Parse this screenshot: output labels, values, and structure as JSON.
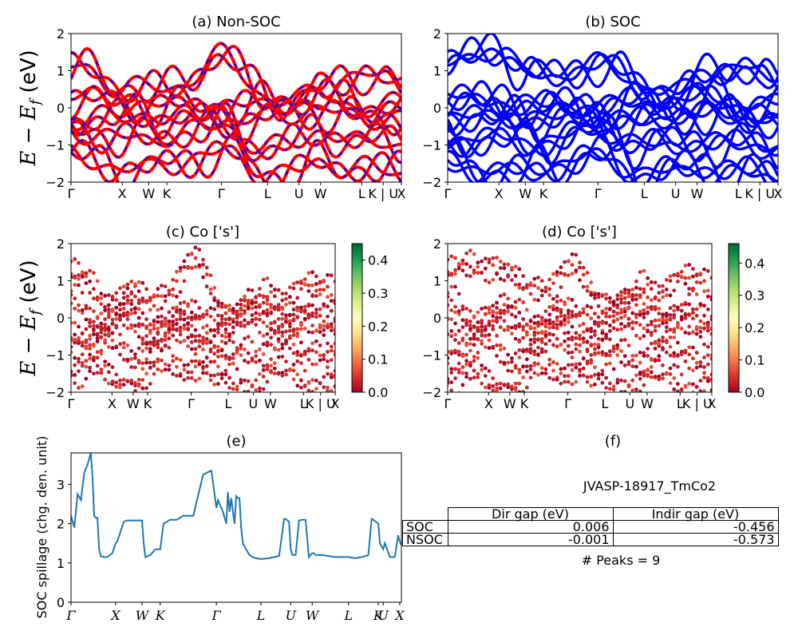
{
  "figure": {
    "ylabel_band": "E − E_f (eV)",
    "kpath_labels": [
      "Γ",
      "X",
      "W",
      "K",
      "Γ",
      "L",
      "U",
      "W",
      "L",
      "K | U",
      "X"
    ],
    "kpath_labels_spillage": [
      "Γ",
      "X",
      "W",
      "K",
      "Γ",
      "L",
      "U",
      "W",
      "L",
      "K",
      "U",
      "X"
    ]
  },
  "panels": {
    "a": {
      "title": "(a) Non-SOC"
    },
    "b": {
      "title": "(b) SOC"
    },
    "c": {
      "title": "(c)  Co ['s']"
    },
    "d": {
      "title": "(d) Co ['s']"
    },
    "e": {
      "title": "(e)",
      "ylabel": "SOC spillage (chg. den. unit)"
    },
    "f": {
      "title": "(f)",
      "material": "JVASP-18917_TmCo2",
      "peaks": "# Peaks = 9"
    }
  },
  "colorbars": {
    "c": {
      "ticks": [
        "0.0",
        "0.1",
        "0.2",
        "0.3",
        "0.4"
      ]
    },
    "d": {
      "ticks": [
        "0.0",
        "0.1",
        "0.2",
        "0.3",
        "0.4"
      ]
    }
  },
  "gap_table": {
    "headers": [
      "Dir gap (eV)",
      "Indir gap (eV)"
    ],
    "rows": [
      {
        "label": "SOC",
        "dir": "0.006",
        "indir": "-0.456"
      },
      {
        "label": "NSOC",
        "dir": "-0.001",
        "indir": "-0.573"
      }
    ]
  },
  "colors": {
    "nonsoc_primary": "#ff0000",
    "nonsoc_dash": "#0000ff",
    "soc": "#0000ff",
    "spillage": "#1f77b4",
    "cmap_low": "#a50026",
    "cmap_high": "#006837"
  },
  "chart_data": [
    {
      "type": "line",
      "panel": "a",
      "title": "(a) Non-SOC",
      "ylabel": "E − E_f (eV)",
      "ylim": [
        -2,
        2
      ],
      "yticks": [
        "−2",
        "−1",
        "0",
        "1",
        "2"
      ],
      "x_ticks": [
        0,
        0.155,
        0.235,
        0.29,
        0.455,
        0.595,
        0.69,
        0.755,
        0.88,
        0.945,
        1.0
      ],
      "x_tick_labels": [
        "Γ",
        "X",
        "W",
        "K",
        "Γ",
        "L",
        "U",
        "W",
        "L",
        "K | U",
        "X"
      ],
      "series": [
        {
          "x": [
            0,
            0.155,
            0.235,
            0.29,
            0.455,
            0.595,
            0.69,
            0.755,
            0.88,
            0.945,
            1.0
          ],
          "values": [
            1.1,
            0.6,
            0.55,
            0.45,
            1.4,
            0.3,
            0.2,
            0.5,
            1.0,
            0.7,
            0.5
          ]
        },
        {
          "x": [
            0,
            0.155,
            0.235,
            0.29,
            0.455,
            0.595,
            0.69,
            0.755,
            0.88,
            0.945,
            1.0
          ],
          "values": [
            0.35,
            0.05,
            0.1,
            0.05,
            0.0,
            0.1,
            0.2,
            0.3,
            0.0,
            0.1,
            0.05
          ]
        },
        {
          "x": [
            0,
            0.155,
            0.235,
            0.29,
            0.455,
            0.595,
            0.69,
            0.755,
            0.88,
            0.945,
            1.0
          ],
          "values": [
            -0.3,
            -0.25,
            -0.15,
            -0.25,
            -0.35,
            -0.3,
            -0.1,
            -0.05,
            -0.3,
            -0.2,
            -0.3
          ]
        },
        {
          "x": [
            0,
            0.155,
            0.235,
            0.29,
            0.455,
            0.595,
            0.69,
            0.755,
            0.88,
            0.945,
            1.0
          ],
          "values": [
            -0.6,
            -0.8,
            -0.9,
            -0.7,
            -0.5,
            -1.1,
            -0.9,
            -0.6,
            -1.0,
            -0.8,
            -1.0
          ]
        },
        {
          "x": [
            0,
            0.155,
            0.235,
            0.29,
            0.455,
            0.595,
            0.69,
            0.755,
            0.88,
            0.945,
            1.0
          ],
          "values": [
            -1.3,
            -1.6,
            -1.7,
            -1.5,
            -1.2,
            -1.8,
            -1.7,
            -1.5,
            -1.6,
            -1.7,
            -1.8
          ]
        }
      ]
    },
    {
      "type": "line",
      "panel": "b",
      "title": "(b) SOC",
      "ylim": [
        -2,
        2
      ],
      "yticks": [
        "−2",
        "−1",
        "0",
        "1",
        "2"
      ],
      "x_ticks": [
        0,
        0.155,
        0.235,
        0.29,
        0.455,
        0.595,
        0.69,
        0.755,
        0.88,
        0.945,
        1.0
      ],
      "x_tick_labels": [
        "Γ",
        "X",
        "W",
        "K",
        "Γ",
        "L",
        "U",
        "W",
        "L",
        "K | U",
        "X"
      ],
      "series": [
        {
          "x": [
            0,
            0.155,
            0.235,
            0.29,
            0.455,
            0.595,
            0.69,
            0.755,
            0.88,
            0.945,
            1.0
          ],
          "values": [
            1.15,
            1.6,
            1.0,
            0.8,
            1.2,
            0.6,
            0.4,
            0.7,
            1.2,
            0.9,
            0.6
          ]
        },
        {
          "x": [
            0,
            0.155,
            0.235,
            0.29,
            0.455,
            0.595,
            0.69,
            0.755,
            0.88,
            0.945,
            1.0
          ],
          "values": [
            0.3,
            0.1,
            0.15,
            0.05,
            0.05,
            0.15,
            0.2,
            0.3,
            0.05,
            0.1,
            0.1
          ]
        },
        {
          "x": [
            0,
            0.155,
            0.235,
            0.29,
            0.455,
            0.595,
            0.69,
            0.755,
            0.88,
            0.945,
            1.0
          ],
          "values": [
            -0.2,
            -0.3,
            -0.2,
            -0.3,
            -0.25,
            -0.4,
            -0.2,
            -0.1,
            -0.3,
            -0.25,
            -0.3
          ]
        },
        {
          "x": [
            0,
            0.155,
            0.235,
            0.29,
            0.455,
            0.595,
            0.69,
            0.755,
            0.88,
            0.945,
            1.0
          ],
          "values": [
            -0.9,
            -0.8,
            -1.0,
            -0.9,
            -0.6,
            -1.0,
            -1.0,
            -0.9,
            -1.0,
            -1.0,
            -1.1
          ]
        },
        {
          "x": [
            0,
            0.155,
            0.235,
            0.29,
            0.455,
            0.595,
            0.69,
            0.755,
            0.88,
            0.945,
            1.0
          ],
          "values": [
            -1.5,
            -1.7,
            -1.8,
            -1.6,
            -1.3,
            -1.8,
            -1.7,
            -1.6,
            -1.7,
            -1.8,
            -1.9
          ]
        }
      ]
    },
    {
      "type": "scatter",
      "panel": "c",
      "title": "(c)  Co ['s']",
      "ylabel": "E − E_f (eV)",
      "ylim": [
        -2,
        2
      ],
      "colorbar_range": [
        0.0,
        0.45
      ],
      "x_tick_labels": [
        "Γ",
        "X",
        "W",
        "K",
        "Γ",
        "L",
        "U",
        "W",
        "L",
        "K | U",
        "X"
      ]
    },
    {
      "type": "scatter",
      "panel": "d",
      "title": "(d) Co ['s']",
      "ylim": [
        -2,
        2
      ],
      "colorbar_range": [
        0.0,
        0.46
      ],
      "x_tick_labels": [
        "Γ",
        "X",
        "W",
        "K",
        "Γ",
        "L",
        "U",
        "W",
        "L",
        "K | U",
        "X"
      ]
    },
    {
      "type": "line",
      "panel": "e",
      "title": "(e)",
      "ylabel": "SOC spillage (chg. den. unit)",
      "ylim": [
        0,
        3.8
      ],
      "yticks": [
        "0",
        "1",
        "2",
        "3"
      ],
      "x_tick_labels": [
        "Γ",
        "X",
        "W",
        "K",
        "Γ",
        "L",
        "U",
        "W",
        "L",
        "K",
        "U",
        "X"
      ],
      "x_ticks": [
        0,
        0.135,
        0.215,
        0.27,
        0.44,
        0.575,
        0.665,
        0.73,
        0.84,
        0.93,
        0.945,
        0.995
      ],
      "x": [
        0,
        0.01,
        0.02,
        0.03,
        0.04,
        0.05,
        0.06,
        0.065,
        0.07,
        0.075,
        0.08,
        0.085,
        0.09,
        0.1,
        0.11,
        0.125,
        0.135,
        0.14,
        0.15,
        0.16,
        0.17,
        0.18,
        0.195,
        0.215,
        0.22,
        0.225,
        0.24,
        0.255,
        0.27,
        0.28,
        0.29,
        0.3,
        0.32,
        0.34,
        0.37,
        0.4,
        0.425,
        0.44,
        0.445,
        0.46,
        0.47,
        0.475,
        0.48,
        0.485,
        0.49,
        0.495,
        0.5,
        0.505,
        0.51,
        0.515,
        0.52,
        0.53,
        0.54,
        0.55,
        0.56,
        0.575,
        0.6,
        0.63,
        0.645,
        0.65,
        0.66,
        0.665,
        0.67,
        0.68,
        0.69,
        0.7,
        0.71,
        0.72,
        0.725,
        0.73,
        0.735,
        0.74,
        0.76,
        0.8,
        0.82,
        0.84,
        0.86,
        0.88,
        0.9,
        0.91,
        0.915,
        0.93,
        0.935,
        0.945,
        0.95,
        0.965,
        0.975,
        0.98,
        0.99,
        0.995,
        1.0
      ],
      "values": [
        2.2,
        1.9,
        2.75,
        2.6,
        3.3,
        3.5,
        3.8,
        3.2,
        2.2,
        2.15,
        2.15,
        1.35,
        1.17,
        1.15,
        1.15,
        1.25,
        1.5,
        1.55,
        1.8,
        2.05,
        2.08,
        2.08,
        2.08,
        2.08,
        1.5,
        1.15,
        1.2,
        1.35,
        1.35,
        2.0,
        2.05,
        2.1,
        2.1,
        2.2,
        2.2,
        3.25,
        3.35,
        2.4,
        2.6,
        2.3,
        2.0,
        2.8,
        2.3,
        2.65,
        2.3,
        2.0,
        2.7,
        2.65,
        2.65,
        1.9,
        1.5,
        1.35,
        1.2,
        1.15,
        1.12,
        1.1,
        1.12,
        1.18,
        2.12,
        2.12,
        2.05,
        1.35,
        1.2,
        1.2,
        2.08,
        2.1,
        2.1,
        1.15,
        1.2,
        1.25,
        1.25,
        1.2,
        1.2,
        1.15,
        1.15,
        1.15,
        1.12,
        1.15,
        1.2,
        2.12,
        2.1,
        2.0,
        1.5,
        1.35,
        1.5,
        1.15,
        1.15,
        1.15,
        1.7,
        1.55,
        1.45
      ]
    }
  ]
}
